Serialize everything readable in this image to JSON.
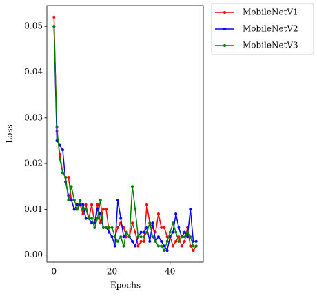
{
  "chart_data": {
    "type": "line",
    "xlabel": "Epochs",
    "ylabel": "Loss",
    "x": [
      0,
      1,
      2,
      3,
      4,
      5,
      6,
      7,
      8,
      9,
      10,
      11,
      12,
      13,
      14,
      15,
      16,
      17,
      18,
      19,
      20,
      21,
      22,
      23,
      24,
      25,
      26,
      27,
      28,
      29,
      30,
      31,
      32,
      33,
      34,
      35,
      36,
      37,
      38,
      39,
      40,
      41,
      42,
      43,
      44,
      45,
      46,
      47,
      48,
      49
    ],
    "series": [
      {
        "name": "MobileNetV1",
        "color": "#ff0000",
        "values": [
          0.052,
          0.027,
          0.022,
          0.018,
          0.017,
          0.017,
          0.012,
          0.01,
          0.01,
          0.011,
          0.009,
          0.011,
          0.008,
          0.011,
          0.007,
          0.011,
          0.007,
          0.01,
          0.01,
          0.005,
          0.004,
          0.004,
          0.006,
          0.007,
          0.006,
          0.004,
          0.004,
          0.007,
          0.005,
          0.002,
          0.003,
          0.003,
          0.011,
          0.007,
          0.006,
          0.005,
          0.009,
          0.006,
          0.006,
          0.004,
          0.004,
          0.002,
          0.003,
          0.004,
          0.002,
          0.003,
          0.006,
          0.002,
          0.001,
          0.002
        ]
      },
      {
        "name": "MobileNetV2",
        "color": "#0000ff",
        "values": [
          0.05,
          0.025,
          0.024,
          0.023,
          0.016,
          0.013,
          0.012,
          0.01,
          0.011,
          0.011,
          0.011,
          0.008,
          0.008,
          0.007,
          0.007,
          0.01,
          0.009,
          0.006,
          0.006,
          0.005,
          0.004,
          0.002,
          0.012,
          0.008,
          0.004,
          0.005,
          0.004,
          0.003,
          0.002,
          0.004,
          0.005,
          0.005,
          0.006,
          0.003,
          0.007,
          0.003,
          0.004,
          0.003,
          0.002,
          0.001,
          0.004,
          0.005,
          0.009,
          0.006,
          0.004,
          0.005,
          0.004,
          0.01,
          0.003,
          0.003
        ]
      },
      {
        "name": "MobileNetV3",
        "color": "#008000",
        "values": [
          0.05,
          0.028,
          0.021,
          0.018,
          0.017,
          0.012,
          0.015,
          0.012,
          0.01,
          0.012,
          0.01,
          0.01,
          0.008,
          0.008,
          0.006,
          0.008,
          0.012,
          0.006,
          0.006,
          0.006,
          0.006,
          0.004,
          0.003,
          0.004,
          0.002,
          0.005,
          0.004,
          0.015,
          0.01,
          0.004,
          0.004,
          0.004,
          0.005,
          0.007,
          0.004,
          0.003,
          0.002,
          0.002,
          0.001,
          0.003,
          0.005,
          0.007,
          0.005,
          0.003,
          0.004,
          0.004,
          0.005,
          0.004,
          0.002,
          0.002
        ]
      }
    ],
    "xlim": [
      -2.45,
      51.45
    ],
    "xticks": [
      0,
      20,
      40
    ],
    "ylim": [
      -0.00155,
      0.05455
    ],
    "yticks": [
      {
        "value": 0,
        "label": "0.00"
      },
      {
        "value": 0.01,
        "label": "0.01"
      },
      {
        "value": 0.02,
        "label": "0.02"
      },
      {
        "value": 0.03,
        "label": "0.03"
      },
      {
        "value": 0.04,
        "label": "0.04"
      },
      {
        "value": 0.05,
        "label": "0.05"
      }
    ],
    "legend": "outside-upper-right"
  }
}
